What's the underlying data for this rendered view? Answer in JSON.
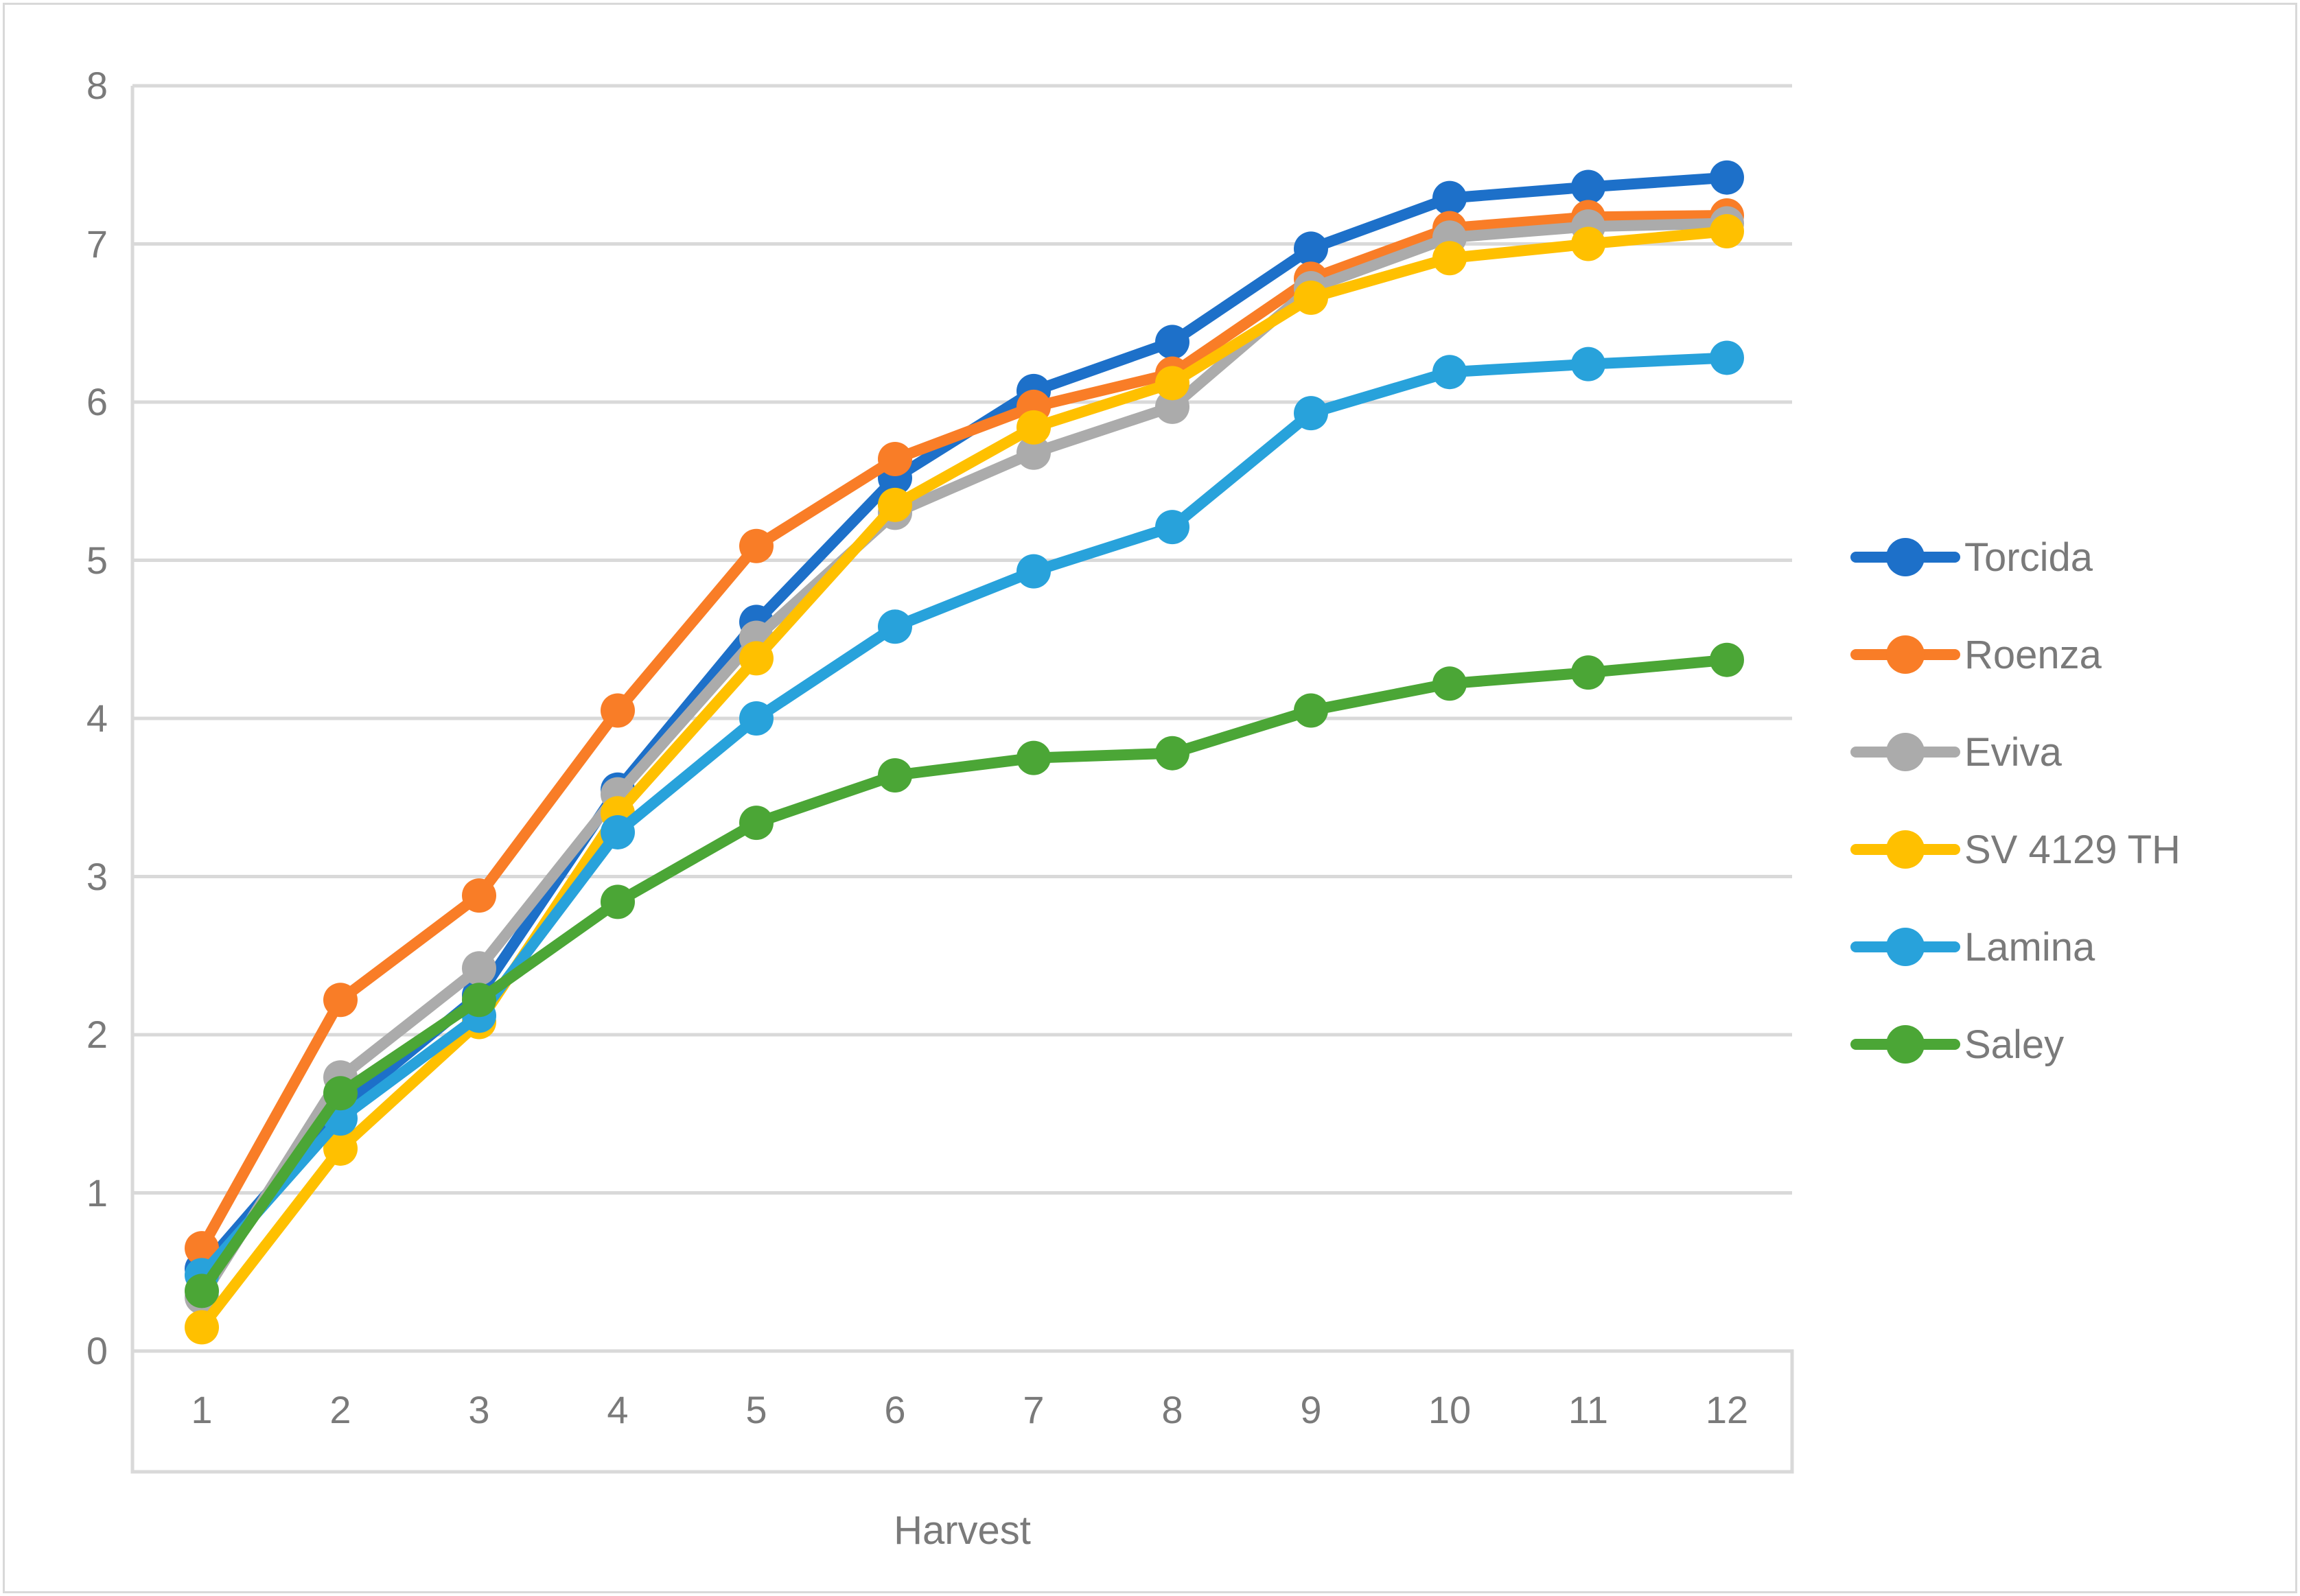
{
  "chart_data": {
    "type": "line",
    "x": [
      1,
      2,
      3,
      4,
      5,
      6,
      7,
      8,
      9,
      10,
      11,
      12
    ],
    "xlabel": "Harvest",
    "ylabel": "",
    "ylim": [
      0,
      8
    ],
    "yticks": [
      0,
      1,
      2,
      3,
      4,
      5,
      6,
      7,
      8
    ],
    "grid": true,
    "legend_position": "right",
    "series": [
      {
        "name": "Torcida",
        "color": "#1d70c9",
        "values": [
          0.52,
          1.53,
          2.25,
          3.55,
          4.61,
          5.52,
          6.07,
          6.38,
          6.97,
          7.29,
          7.36,
          7.42
        ]
      },
      {
        "name": "Roenza",
        "color": "#f97d27",
        "values": [
          0.65,
          2.22,
          2.88,
          4.05,
          5.09,
          5.64,
          5.97,
          6.18,
          6.78,
          7.1,
          7.17,
          7.18
        ]
      },
      {
        "name": "Eviva",
        "color": "#ababab",
        "values": [
          0.34,
          1.73,
          2.42,
          3.52,
          4.51,
          5.3,
          5.68,
          5.97,
          6.72,
          7.04,
          7.11,
          7.13
        ]
      },
      {
        "name": "SV 4129 TH",
        "color": "#ffc000",
        "values": [
          0.15,
          1.28,
          2.08,
          3.4,
          4.38,
          5.35,
          5.84,
          6.12,
          6.66,
          6.91,
          7.0,
          7.08
        ]
      },
      {
        "name": "Lamina",
        "color": "#28a2db",
        "values": [
          0.48,
          1.47,
          2.12,
          3.28,
          4.0,
          4.58,
          4.93,
          5.21,
          5.93,
          6.19,
          6.24,
          6.28
        ]
      },
      {
        "name": "Saley",
        "color": "#4ba636",
        "values": [
          0.38,
          1.63,
          2.22,
          2.84,
          3.34,
          3.64,
          3.75,
          3.78,
          4.05,
          4.22,
          4.29,
          4.37
        ]
      }
    ]
  },
  "axes": {
    "x_tick_labels": [
      "1",
      "2",
      "3",
      "4",
      "5",
      "6",
      "7",
      "8",
      "9",
      "10",
      "11",
      "12"
    ],
    "y_tick_labels": [
      "0",
      "1",
      "2",
      "3",
      "4",
      "5",
      "6",
      "7",
      "8"
    ],
    "x_title": "Harvest"
  },
  "legend": {
    "items": [
      "Torcida",
      "Roenza",
      "Eviva",
      "SV 4129 TH",
      "Lamina",
      "Saley"
    ]
  },
  "colors": {
    "gridline": "#d9d9d9",
    "axis_line": "#d9d9d9",
    "tick_text": "#7a7a7a",
    "background": "#ffffff"
  }
}
